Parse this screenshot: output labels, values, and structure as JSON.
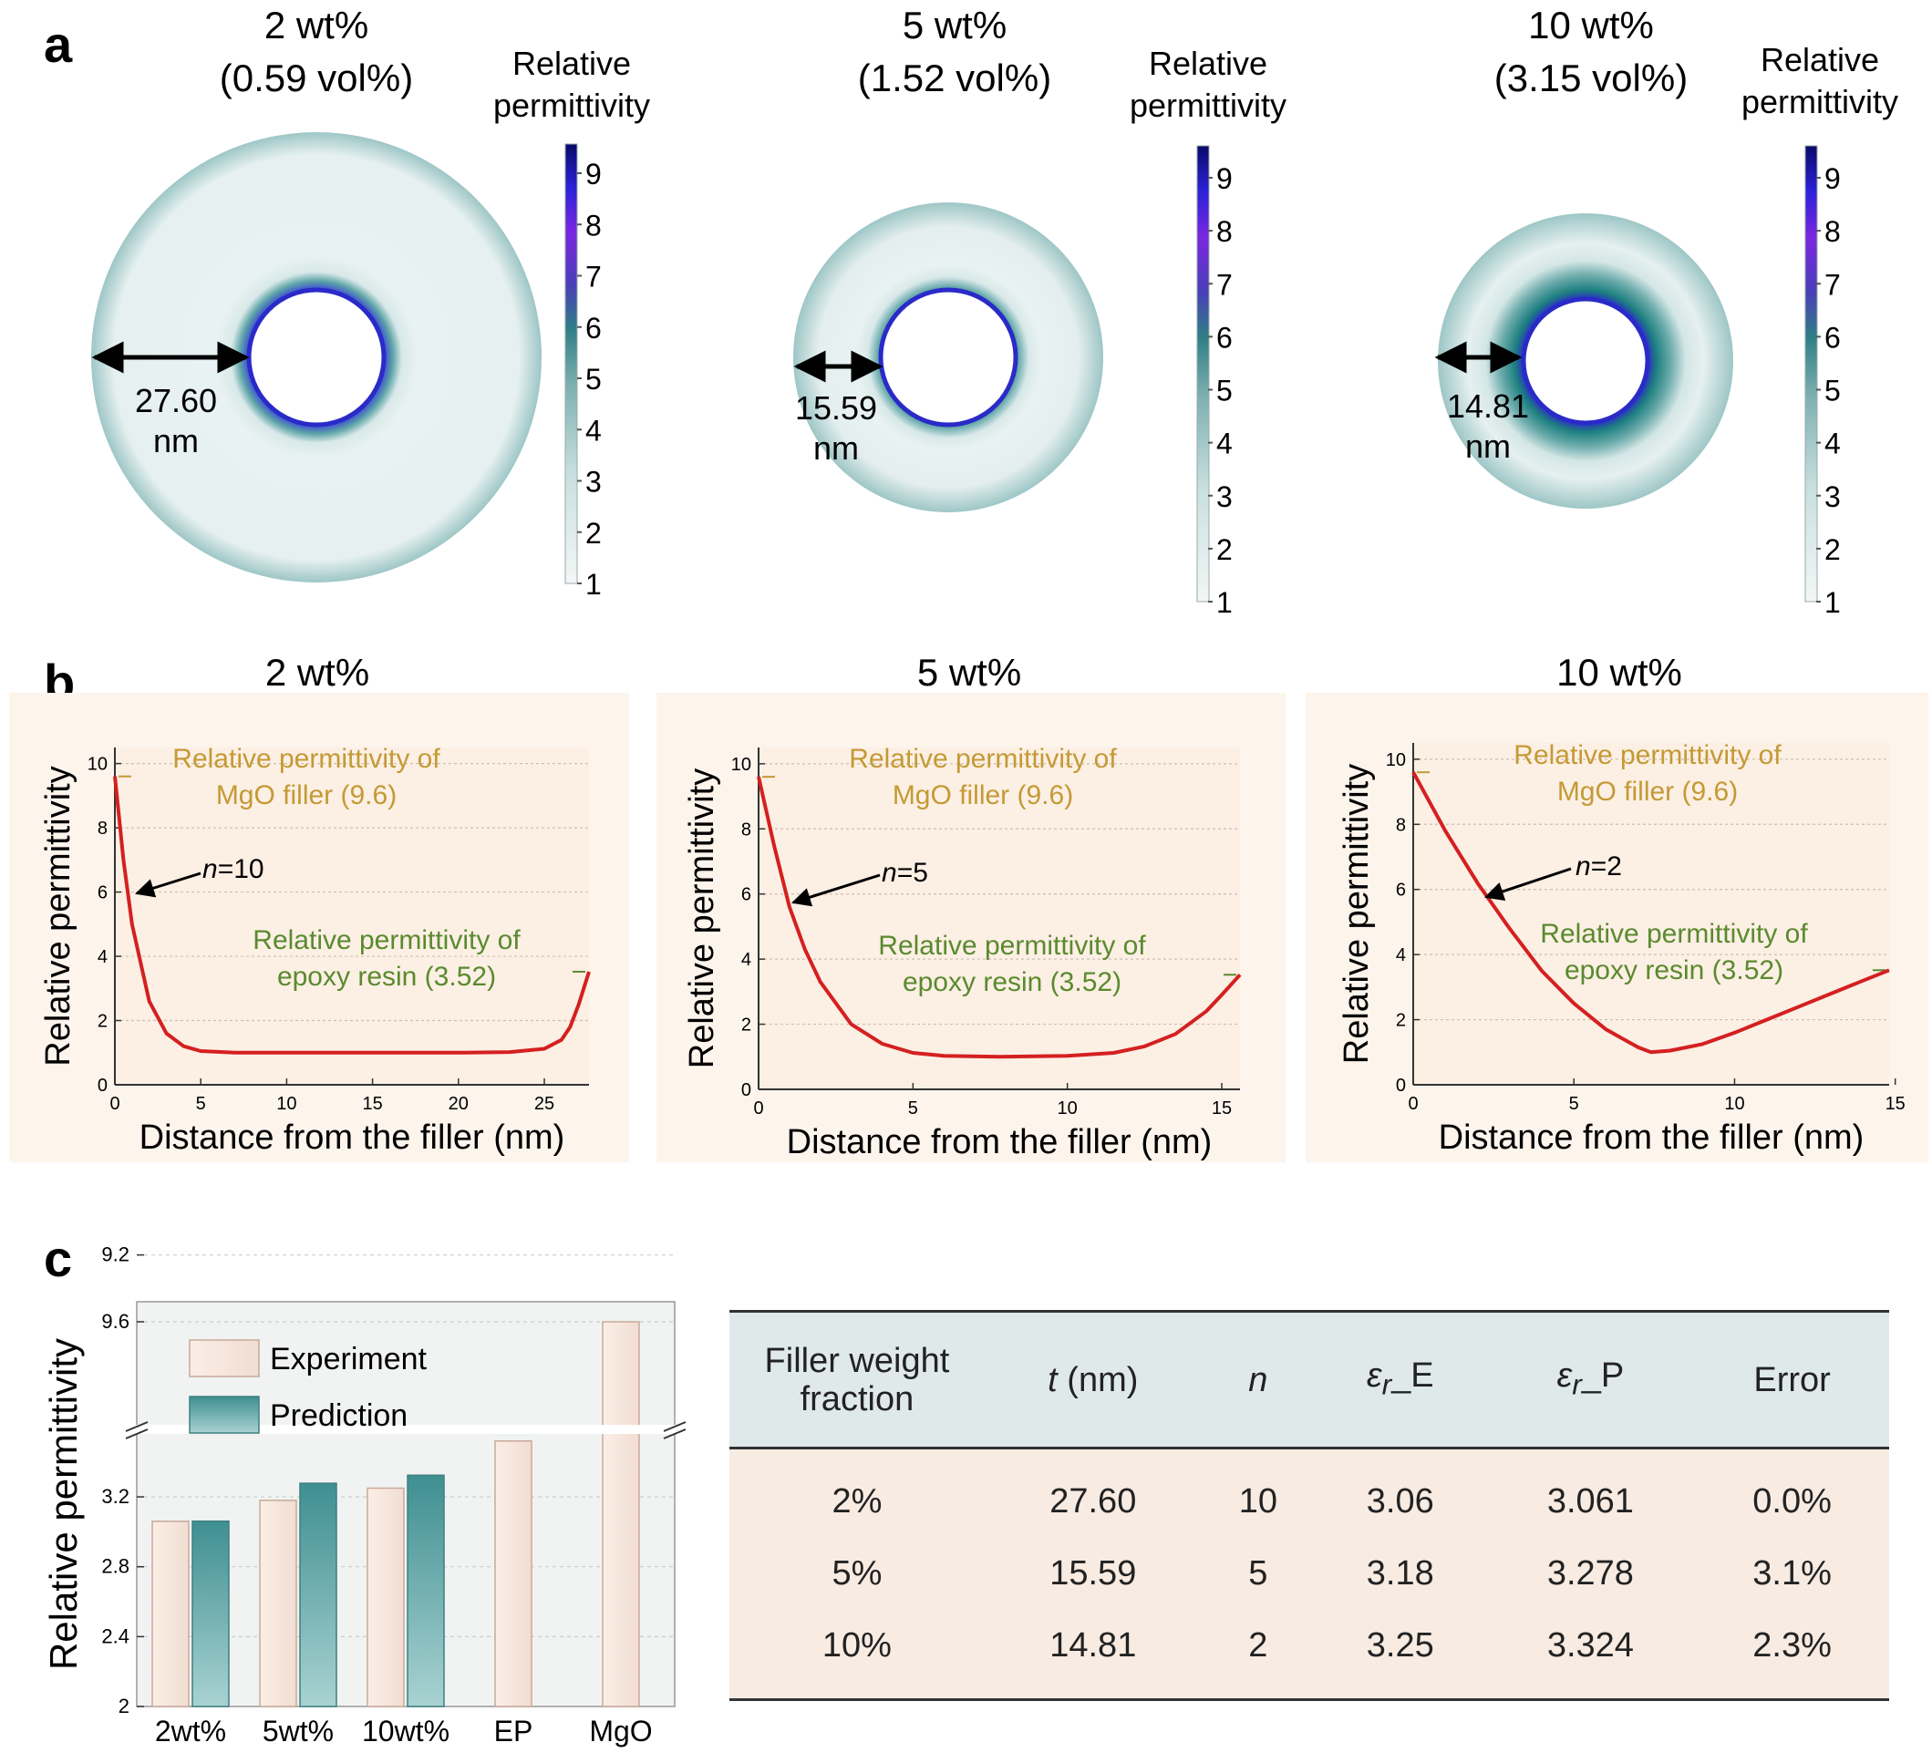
{
  "panel_labels": {
    "a": "a",
    "b": "b",
    "c": "c"
  },
  "colorbar_ticks": [
    "1",
    "2",
    "3",
    "4",
    "5",
    "6",
    "7",
    "8",
    "9"
  ],
  "colors": {
    "shell_light": "#e8f1f1",
    "shell_dark": "#a9cbcc",
    "interface_blue": "#2632c8",
    "curve_red": "#d42020",
    "plot_bg": "#fcefe4",
    "mgo_text": "#c49a35",
    "epoxy_text": "#5a8a2e",
    "bar_experiment": "#f6e6dc",
    "bar_prediction": "#4f9c9c"
  },
  "panel_a": [
    {
      "title1": "2 wt%",
      "title2": "(0.59 vol%)",
      "cb_title1": "Relative",
      "cb_title2": "permittivity",
      "thickness": "27.60",
      "unit": "nm"
    },
    {
      "title1": "5 wt%",
      "title2": "(1.52 vol%)",
      "cb_title1": "Relative",
      "cb_title2": "permittivity",
      "thickness": "15.59",
      "unit": "nm"
    },
    {
      "title1": "10 wt%",
      "title2": "(3.15 vol%)",
      "cb_title1": "Relative",
      "cb_title2": "permittivity",
      "thickness": "14.81",
      "unit": "nm"
    }
  ],
  "chart_data": [
    {
      "type": "line",
      "panel": "b",
      "title": "2 wt%",
      "xlabel": "Distance from the filler (nm)",
      "ylabel": "Relative permittivity",
      "xlim": [
        0,
        27.6
      ],
      "ylim": [
        0,
        10.5
      ],
      "xticks": [
        "0",
        "5",
        "10",
        "15",
        "20",
        "25"
      ],
      "yticks": [
        "0",
        "2",
        "4",
        "6",
        "8",
        "10"
      ],
      "n_label_var": "n",
      "n_label_val": "=10",
      "annotation_mgo": [
        "Relative permittivity of",
        "MgO filler (9.6)"
      ],
      "annotation_epoxy": [
        "Relative permittivity of",
        "epoxy resin (3.52)"
      ],
      "series": [
        {
          "x": [
            0,
            0.5,
            1,
            2,
            3,
            4,
            5,
            7,
            10,
            15,
            20,
            23,
            25,
            26,
            26.5,
            27,
            27.6
          ],
          "y": [
            9.6,
            7.0,
            5.0,
            2.6,
            1.6,
            1.2,
            1.05,
            1.0,
            1.0,
            1.0,
            1.0,
            1.02,
            1.12,
            1.4,
            1.8,
            2.5,
            3.52
          ]
        }
      ]
    },
    {
      "type": "line",
      "panel": "b",
      "title": "5 wt%",
      "xlabel": "Distance from the filler (nm)",
      "ylabel": "Relative permittivity",
      "xlim": [
        0,
        15.59
      ],
      "ylim": [
        0,
        10.5
      ],
      "xticks": [
        "0",
        "5",
        "10",
        "15"
      ],
      "yticks": [
        "0",
        "2",
        "4",
        "6",
        "8",
        "10"
      ],
      "n_label_var": "n",
      "n_label_val": "=5",
      "annotation_mgo": [
        "Relative permittivity of",
        "MgO filler (9.6)"
      ],
      "annotation_epoxy": [
        "Relative permittivity of",
        "epoxy resin (3.52)"
      ],
      "series": [
        {
          "x": [
            0,
            0.5,
            1,
            1.5,
            2,
            3,
            4,
            5,
            6,
            7.8,
            10,
            11.5,
            12.5,
            13.5,
            14.5,
            15,
            15.59
          ],
          "y": [
            9.6,
            7.5,
            5.6,
            4.3,
            3.3,
            2.0,
            1.4,
            1.12,
            1.03,
            1.0,
            1.03,
            1.12,
            1.32,
            1.7,
            2.4,
            2.9,
            3.52
          ]
        }
      ]
    },
    {
      "type": "line",
      "panel": "b",
      "title": "10 wt%",
      "xlabel": "Distance from the filler (nm)",
      "ylabel": "Relative permittivity",
      "xlim": [
        0,
        14.81
      ],
      "ylim": [
        0,
        10.5
      ],
      "xticks": [
        "0",
        "5",
        "10",
        "15"
      ],
      "yticks": [
        "0",
        "2",
        "4",
        "6",
        "8",
        "10"
      ],
      "n_label_var": "n",
      "n_label_val": "=2",
      "annotation_mgo": [
        "Relative permittivity of",
        "MgO filler (9.6)"
      ],
      "annotation_epoxy": [
        "Relative permittivity of",
        "epoxy resin (3.52)"
      ],
      "series": [
        {
          "x": [
            0,
            1,
            2,
            3,
            4,
            5,
            6,
            7,
            7.4,
            8,
            9,
            10,
            11,
            12,
            13,
            14,
            14.81
          ],
          "y": [
            9.6,
            7.8,
            6.2,
            4.8,
            3.5,
            2.5,
            1.7,
            1.15,
            1.0,
            1.05,
            1.25,
            1.6,
            2.0,
            2.4,
            2.8,
            3.2,
            3.52
          ]
        }
      ]
    },
    {
      "type": "bar",
      "panel": "c",
      "ylabel": "Relative permittivity",
      "categories": [
        "2wt%",
        "5wt%",
        "10wt%",
        "EP",
        "MgO"
      ],
      "yticks": [
        "2",
        "2.4",
        "2.8",
        "3.2",
        "9.2",
        "9.6"
      ],
      "axis_break": [
        3.55,
        9.0
      ],
      "series": [
        {
          "name": "Experiment",
          "values": [
            3.06,
            3.18,
            3.25,
            3.52,
            9.6
          ]
        },
        {
          "name": "Prediction",
          "values": [
            3.061,
            3.278,
            3.324,
            null,
            null
          ]
        }
      ]
    }
  ],
  "table": {
    "headers": {
      "fraction_line1": "Filler weight",
      "fraction_line2": "fraction",
      "t_var": "t",
      "t_unit": " (nm)",
      "n_var": "n",
      "epsE_var": "ε",
      "epsE_sub": "r",
      "epsE_suffix": "_E",
      "epsP_var": "ε",
      "epsP_sub": "r",
      "epsP_suffix": "_P",
      "error": "Error"
    },
    "rows": [
      {
        "fraction": "2%",
        "t": "27.60",
        "n": "10",
        "eps_e": "3.06",
        "eps_p": "3.061",
        "error": "0.0%"
      },
      {
        "fraction": "5%",
        "t": "15.59",
        "n": "5",
        "eps_e": "3.18",
        "eps_p": "3.278",
        "error": "3.1%"
      },
      {
        "fraction": "10%",
        "t": "14.81",
        "n": "2",
        "eps_e": "3.25",
        "eps_p": "3.324",
        "error": "2.3%"
      }
    ]
  }
}
